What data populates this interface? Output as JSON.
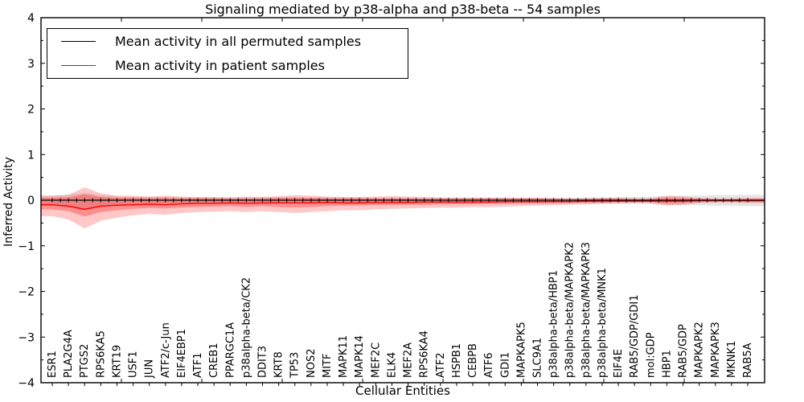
{
  "chart_data": {
    "type": "line",
    "title": "Signaling mediated by p38-alpha and p38-beta -- 54 samples",
    "xlabel": "Cellular Entities",
    "ylabel": "Inferred Activity",
    "ylim": [
      -4,
      4
    ],
    "yticks": [
      -4,
      -3,
      -2,
      -1,
      0,
      1,
      2,
      3,
      4
    ],
    "grid": false,
    "legend_position": "upper left",
    "categories": [
      "ESR1",
      "PLA2G4A",
      "PTGS2",
      "RPS6KA5",
      "KRT19",
      "USF1",
      "JUN",
      "ATF2/c-Jun",
      "EIF4EBP1",
      "ATF1",
      "CREB1",
      "PPARGC1A",
      "p38alpha-beta/CK2",
      "DDIT3",
      "KRT8",
      "TP53",
      "NOS2",
      "MITF",
      "MAPK11",
      "MAPK14",
      "MEF2C",
      "ELK4",
      "MEF2A",
      "RPS6KA4",
      "ATF2",
      "HSPB1",
      "CEBPB",
      "ATF6",
      "GDI1",
      "MAPKAPK5",
      "SLC9A1",
      "p38alpha-beta/HBP1",
      "p38alpha-beta/MAPKAPK2",
      "p38alpha-beta/MAPKAPK3",
      "p38alpha-beta/MNK1",
      "EIF4E",
      "RAB5/GDP/GDI1",
      "mol:GDP",
      "HBP1",
      "RAB5/GDP",
      "MAPKAPK2",
      "MAPKAPK3",
      "MKNK1",
      "RAB5A"
    ],
    "series": [
      {
        "name": "Mean activity in all permuted samples",
        "color": "#000000",
        "marker": "+",
        "band_color": "rgba(0,0,0,0.10)",
        "values": [
          0,
          0,
          0,
          0,
          0,
          0,
          0,
          0,
          0,
          0,
          0,
          0,
          0,
          0,
          0,
          0,
          0,
          0,
          0,
          0,
          0,
          0,
          0,
          0,
          0,
          0,
          0,
          0,
          0,
          0,
          0,
          0,
          0,
          0,
          0,
          0,
          0,
          0,
          0,
          0,
          0,
          0,
          0,
          0
        ],
        "band_upper": [
          0.1,
          0.12,
          0.16,
          0.11,
          0.08,
          0.07,
          0.07,
          0.07,
          0.06,
          0.06,
          0.06,
          0.06,
          0.06,
          0.06,
          0.06,
          0.06,
          0.06,
          0.06,
          0.06,
          0.06,
          0.05,
          0.05,
          0.05,
          0.05,
          0.05,
          0.05,
          0.05,
          0.05,
          0.05,
          0.05,
          0.05,
          0.05,
          0.05,
          0.06,
          0.06,
          0.07,
          0.07,
          0.08,
          0.09,
          0.1,
          0.1,
          0.11,
          0.11,
          0.12
        ],
        "band_lower": [
          -0.12,
          -0.15,
          -0.2,
          -0.13,
          -0.1,
          -0.09,
          -0.08,
          -0.08,
          -0.07,
          -0.07,
          -0.07,
          -0.07,
          -0.07,
          -0.07,
          -0.07,
          -0.07,
          -0.07,
          -0.07,
          -0.07,
          -0.07,
          -0.06,
          -0.06,
          -0.06,
          -0.06,
          -0.06,
          -0.06,
          -0.06,
          -0.06,
          -0.06,
          -0.06,
          -0.06,
          -0.06,
          -0.06,
          -0.07,
          -0.07,
          -0.08,
          -0.08,
          -0.09,
          -0.1,
          -0.11,
          -0.11,
          -0.12,
          -0.12,
          -0.13
        ]
      },
      {
        "name": "Mean activity in patient samples",
        "color": "#ff0000",
        "band_color": "rgba(255,0,0,0.22)",
        "inner_band_color": "rgba(255,0,0,0.28)",
        "values": [
          -0.1,
          -0.13,
          -0.2,
          -0.13,
          -0.11,
          -0.1,
          -0.09,
          -0.1,
          -0.08,
          -0.07,
          -0.07,
          -0.06,
          -0.07,
          -0.06,
          -0.06,
          -0.06,
          -0.06,
          -0.05,
          -0.06,
          -0.06,
          -0.05,
          -0.05,
          -0.05,
          -0.04,
          -0.04,
          -0.04,
          -0.04,
          -0.04,
          -0.03,
          -0.03,
          -0.03,
          -0.03,
          -0.03,
          -0.02,
          -0.02,
          -0.02,
          -0.02,
          -0.02,
          -0.02,
          -0.02,
          -0.01,
          -0.01,
          -0.01,
          -0.01
        ],
        "band_upper": [
          0.1,
          0.12,
          0.28,
          0.15,
          0.1,
          0.1,
          0.08,
          0.1,
          0.08,
          0.07,
          0.07,
          0.06,
          0.08,
          0.07,
          0.09,
          0.11,
          0.1,
          0.08,
          0.07,
          0.07,
          0.08,
          0.09,
          0.08,
          0.07,
          0.06,
          0.06,
          0.06,
          0.06,
          0.06,
          0.05,
          0.05,
          0.05,
          0.04,
          0.04,
          0.05,
          0.05,
          0.04,
          0.04,
          0.1,
          0.08,
          0.05,
          0.04,
          0.04,
          0.05
        ],
        "band_lower": [
          -0.35,
          -0.42,
          -0.62,
          -0.45,
          -0.38,
          -0.33,
          -0.3,
          -0.32,
          -0.28,
          -0.26,
          -0.25,
          -0.24,
          -0.26,
          -0.24,
          -0.26,
          -0.28,
          -0.26,
          -0.24,
          -0.22,
          -0.22,
          -0.2,
          -0.19,
          -0.18,
          -0.17,
          -0.16,
          -0.16,
          -0.15,
          -0.15,
          -0.14,
          -0.13,
          -0.12,
          -0.11,
          -0.1,
          -0.09,
          -0.08,
          -0.07,
          -0.06,
          -0.06,
          -0.12,
          -0.1,
          -0.06,
          -0.05,
          -0.05,
          -0.06
        ],
        "inner_band_upper": [
          0.05,
          0.06,
          0.13,
          0.07,
          0.05,
          0.05,
          0.04,
          0.05,
          0.04,
          0.04,
          0.04,
          0.03,
          0.04,
          0.04,
          0.05,
          0.06,
          0.05,
          0.04,
          0.04,
          0.04,
          0.04,
          0.04,
          0.04,
          0.03,
          0.03,
          0.03,
          0.03,
          0.03,
          0.03,
          0.03,
          0.03,
          0.02,
          0.02,
          0.02,
          0.03,
          0.03,
          0.02,
          0.02,
          0.05,
          0.04,
          0.03,
          0.02,
          0.02,
          0.03
        ],
        "inner_band_lower": [
          -0.2,
          -0.24,
          -0.36,
          -0.26,
          -0.22,
          -0.19,
          -0.17,
          -0.18,
          -0.16,
          -0.15,
          -0.14,
          -0.13,
          -0.15,
          -0.13,
          -0.15,
          -0.16,
          -0.15,
          -0.13,
          -0.12,
          -0.12,
          -0.11,
          -0.11,
          -0.1,
          -0.1,
          -0.09,
          -0.09,
          -0.09,
          -0.08,
          -0.08,
          -0.07,
          -0.07,
          -0.06,
          -0.06,
          -0.05,
          -0.05,
          -0.04,
          -0.04,
          -0.04,
          -0.07,
          -0.06,
          -0.04,
          -0.03,
          -0.03,
          -0.04
        ]
      }
    ]
  }
}
